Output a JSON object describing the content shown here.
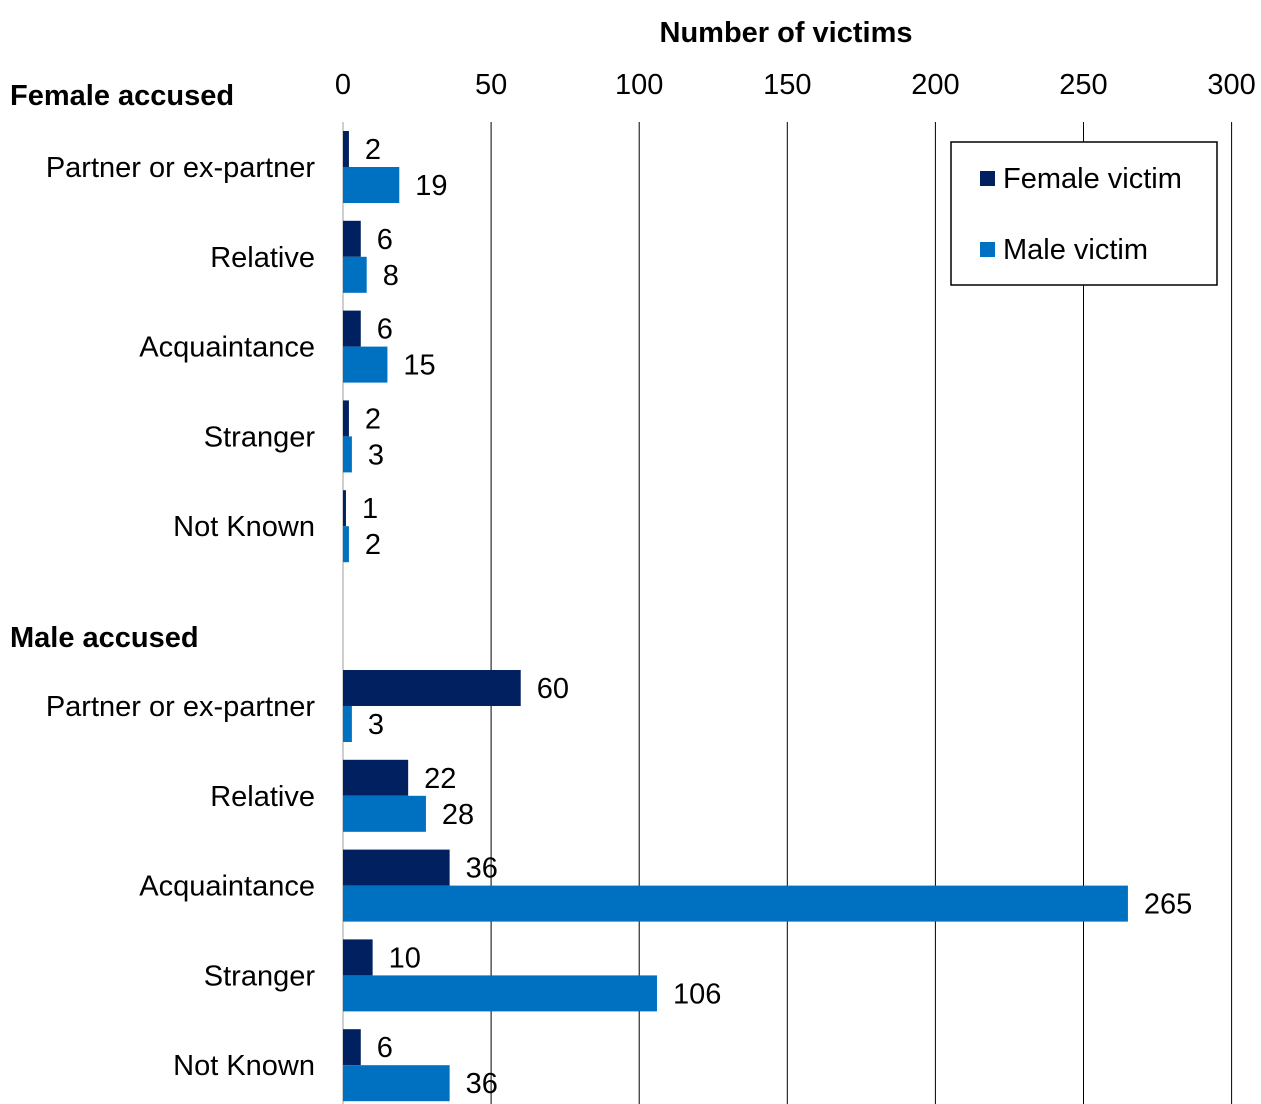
{
  "chart_data": {
    "type": "bar",
    "orientation": "horizontal",
    "xlabel": "Number of victims",
    "xlim": [
      0,
      300
    ],
    "xticks": [
      "0",
      "50",
      "100",
      "150",
      "200",
      "250",
      "300"
    ],
    "grid": true,
    "legend_position": "top-right",
    "groups": [
      {
        "label": "Female accused",
        "categories": [
          "Partner or ex-partner",
          "Relative",
          "Acquaintance",
          "Stranger",
          "Not Known"
        ],
        "series": [
          {
            "name": "Female victim",
            "values": [
              2,
              6,
              6,
              2,
              1
            ]
          },
          {
            "name": "Male victim",
            "values": [
              19,
              8,
              15,
              3,
              2
            ]
          }
        ]
      },
      {
        "label": "Male accused",
        "categories": [
          "Partner or ex-partner",
          "Relative",
          "Acquaintance",
          "Stranger",
          "Not Known"
        ],
        "series": [
          {
            "name": "Female victim",
            "values": [
              60,
              22,
              36,
              10,
              6
            ]
          },
          {
            "name": "Male victim",
            "values": [
              3,
              28,
              265,
              106,
              36
            ]
          }
        ]
      }
    ],
    "colors": {
      "Female victim": "#002060",
      "Male victim": "#0070C0"
    }
  }
}
